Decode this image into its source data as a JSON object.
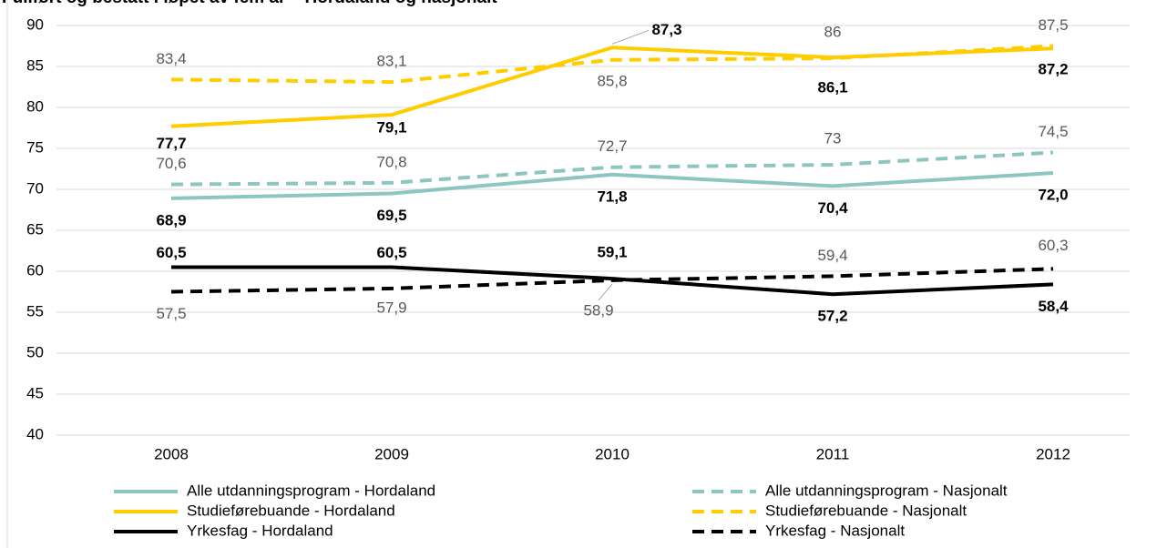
{
  "chart_data": {
    "type": "line",
    "title": "Fullført og bestått i løpet av fem år – Hordaland og nasjonalt",
    "categories": [
      "2008",
      "2009",
      "2010",
      "2011",
      "2012"
    ],
    "ylim": [
      40,
      90
    ],
    "yticks": [
      40,
      45,
      50,
      55,
      60,
      65,
      70,
      75,
      80,
      85,
      90
    ],
    "grid": true,
    "series": [
      {
        "name": "Alle utdanningsprogram - Hordaland",
        "color": "#8dc6c1",
        "dashed": false,
        "values": [
          68.9,
          69.5,
          71.8,
          70.4,
          72.0
        ],
        "value_labels": [
          "68,9",
          "69,5",
          "71,8",
          "70,4",
          "72,0"
        ]
      },
      {
        "name": "Alle utdanningsprogram - Nasjonalt",
        "color": "#8dc6c1",
        "dashed": true,
        "values": [
          70.6,
          70.8,
          72.7,
          73,
          74.5
        ],
        "value_labels": [
          "70,6",
          "70,8",
          "72,7",
          "73",
          "74,5"
        ]
      },
      {
        "name": "Studieførebuande - Hordaland",
        "color": "#ffcc00",
        "dashed": false,
        "values": [
          77.7,
          79.1,
          87.3,
          86.1,
          87.2
        ],
        "value_labels": [
          "77,7",
          "79,1",
          "87,3",
          "86,1",
          "87,2"
        ]
      },
      {
        "name": "Studieførebuande - Nasjonalt",
        "color": "#ffcc00",
        "dashed": true,
        "values": [
          83.4,
          83.1,
          85.8,
          86,
          87.5
        ],
        "value_labels": [
          "83,4",
          "83,1",
          "85,8",
          "86",
          "87,5"
        ]
      },
      {
        "name": "Yrkesfag - Hordaland",
        "color": "#000000",
        "dashed": false,
        "values": [
          60.5,
          60.5,
          59.1,
          57.2,
          58.4
        ],
        "value_labels": [
          "60,5",
          "60,5",
          "59,1",
          "57,2",
          "58,4"
        ]
      },
      {
        "name": "Yrkesfag - Nasjonalt",
        "color": "#000000",
        "dashed": true,
        "values": [
          57.5,
          57.9,
          58.9,
          59.4,
          60.3
        ],
        "value_labels": [
          "57,5",
          "57,9",
          "58,9",
          "59,4",
          "60,3"
        ]
      }
    ]
  }
}
